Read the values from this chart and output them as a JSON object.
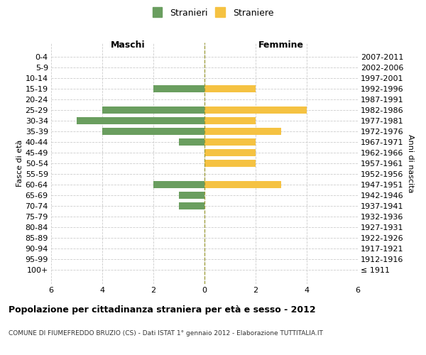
{
  "age_groups": [
    "100+",
    "95-99",
    "90-94",
    "85-89",
    "80-84",
    "75-79",
    "70-74",
    "65-69",
    "60-64",
    "55-59",
    "50-54",
    "45-49",
    "40-44",
    "35-39",
    "30-34",
    "25-29",
    "20-24",
    "15-19",
    "10-14",
    "5-9",
    "0-4"
  ],
  "birth_years": [
    "≤ 1911",
    "1912-1916",
    "1917-1921",
    "1922-1926",
    "1927-1931",
    "1932-1936",
    "1937-1941",
    "1942-1946",
    "1947-1951",
    "1952-1956",
    "1957-1961",
    "1962-1966",
    "1967-1971",
    "1972-1976",
    "1977-1981",
    "1982-1986",
    "1987-1991",
    "1992-1996",
    "1997-2001",
    "2002-2006",
    "2007-2011"
  ],
  "males": [
    0,
    0,
    0,
    0,
    0,
    0,
    1,
    1,
    2,
    0,
    0,
    0,
    1,
    4,
    5,
    4,
    0,
    2,
    0,
    0,
    0
  ],
  "females": [
    0,
    0,
    0,
    0,
    0,
    0,
    0,
    0,
    3,
    0,
    2,
    2,
    2,
    3,
    2,
    4,
    0,
    2,
    0,
    0,
    0
  ],
  "male_color": "#6a9e5f",
  "female_color": "#f5c242",
  "title": "Popolazione per cittadinanza straniera per età e sesso - 2012",
  "subtitle": "COMUNE DI FIUMEFREDDO BRUZIO (CS) - Dati ISTAT 1° gennaio 2012 - Elaborazione TUTTITALIA.IT",
  "xlabel_left": "Maschi",
  "xlabel_right": "Femmine",
  "ylabel_left": "Fasce di età",
  "ylabel_right": "Anni di nascita",
  "legend_male": "Stranieri",
  "legend_female": "Straniere",
  "xlim": 6,
  "bg_color": "#ffffff",
  "grid_color": "#cccccc",
  "bar_height": 0.65
}
